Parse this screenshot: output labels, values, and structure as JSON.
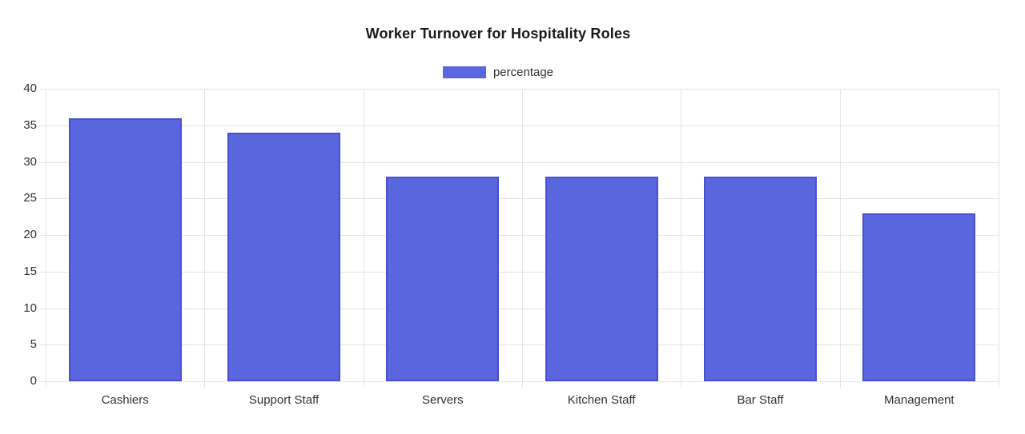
{
  "chart_data": {
    "type": "bar",
    "title": "Worker Turnover for Hospitality Roles",
    "categories": [
      "Cashiers",
      "Support Staff",
      "Servers",
      "Kitchen Staff",
      "Bar Staff",
      "Management"
    ],
    "series": [
      {
        "name": "percentage",
        "values": [
          36,
          34,
          28,
          28,
          28,
          23
        ]
      }
    ],
    "xlabel": "",
    "ylabel": "",
    "ylim": [
      0,
      40
    ],
    "ytick_step": 5,
    "yticks": [
      0,
      5,
      10,
      15,
      20,
      25,
      30,
      35,
      40
    ],
    "grid": true,
    "legend_position": "top-center",
    "colors": {
      "bar_fill": "#5a66de",
      "bar_border": "#4950d2",
      "gridline": "#e5e5e5",
      "tick_text": "#333333",
      "title_text": "#1a1a1a",
      "background": "#ffffff"
    }
  }
}
